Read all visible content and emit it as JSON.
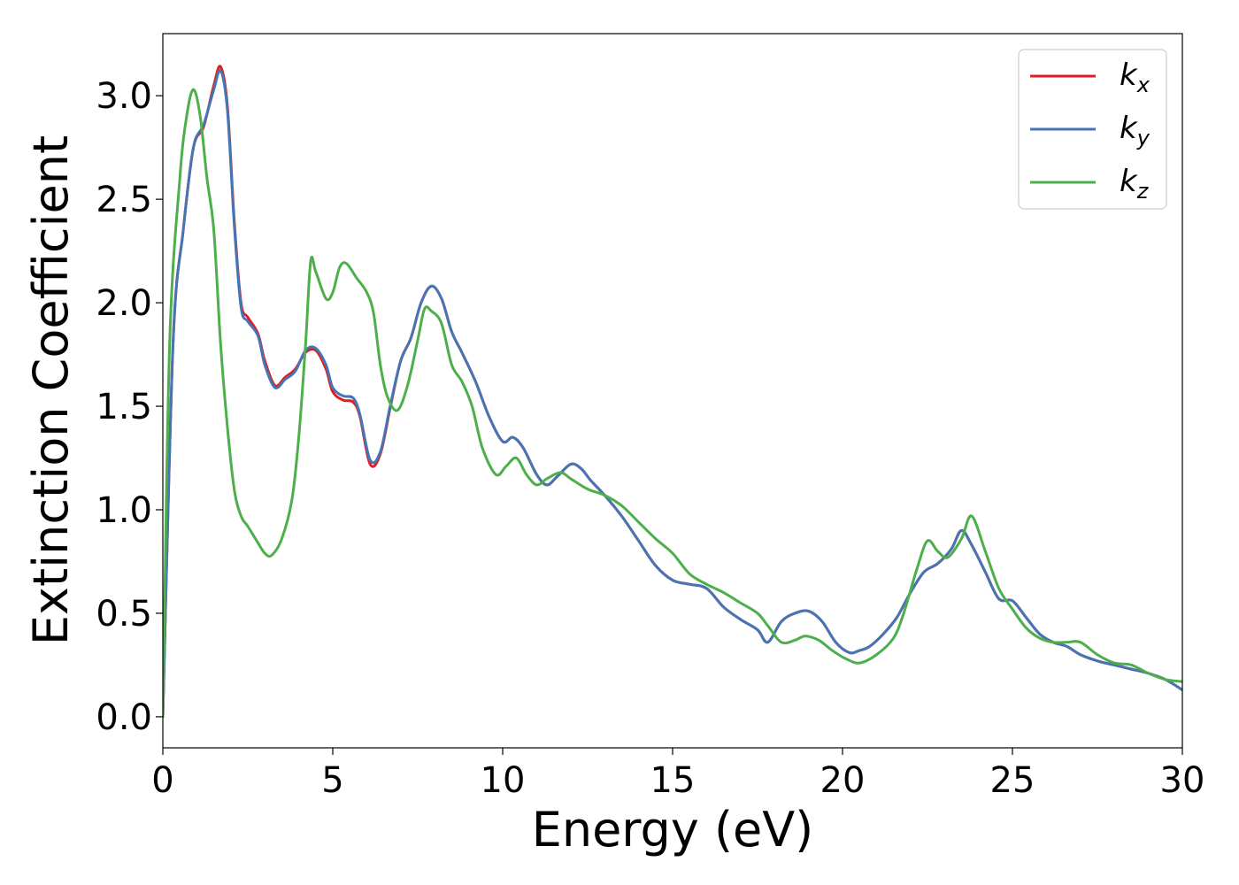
{
  "chart_data": {
    "type": "line",
    "xlabel": "Energy (eV)",
    "ylabel": "Extinction Coefficient",
    "xlim": [
      0,
      30
    ],
    "ylim": [
      -0.15,
      3.3
    ],
    "xticks": [
      0,
      5,
      10,
      15,
      20,
      25,
      30
    ],
    "xtick_labels": [
      "0",
      "5",
      "10",
      "15",
      "20",
      "25",
      "30"
    ],
    "yticks": [
      0.0,
      0.5,
      1.0,
      1.5,
      2.0,
      2.5,
      3.0
    ],
    "ytick_labels": [
      "0.0",
      "0.5",
      "1.0",
      "1.5",
      "2.0",
      "2.5",
      "3.0"
    ],
    "grid": false,
    "legend_position": "top-right",
    "series": [
      {
        "name": "kx",
        "label_base": "k",
        "label_sub": "x",
        "color": "#e41a1c",
        "x": [
          0,
          0.3,
          0.6,
          0.9,
          1.2,
          1.5,
          1.7,
          1.9,
          2.1,
          2.3,
          2.5,
          2.8,
          3.0,
          3.3,
          3.6,
          3.9,
          4.2,
          4.5,
          4.8,
          5.0,
          5.3,
          5.6,
          5.8,
          6.1,
          6.4,
          6.7,
          7.0,
          7.3,
          7.6,
          7.9,
          8.2,
          8.5,
          8.8,
          9.2,
          9.6,
          10.0,
          10.3,
          10.6,
          11.0,
          11.3,
          11.6,
          12.0,
          12.3,
          12.6,
          13.0,
          13.5,
          14.0,
          14.5,
          15.0,
          15.5,
          16.0,
          16.5,
          17.0,
          17.5,
          17.8,
          18.2,
          18.6,
          19.0,
          19.4,
          19.8,
          20.2,
          20.5,
          20.8,
          21.2,
          21.6,
          22.0,
          22.4,
          22.8,
          23.2,
          23.5,
          23.8,
          24.2,
          24.6,
          25.0,
          25.4,
          25.8,
          26.2,
          26.6,
          27.0,
          27.5,
          28.0,
          28.5,
          29.0,
          29.5,
          30.0
        ],
        "y": [
          0.0,
          1.8,
          2.35,
          2.75,
          2.85,
          3.05,
          3.14,
          2.95,
          2.4,
          2.0,
          1.93,
          1.85,
          1.72,
          1.6,
          1.64,
          1.68,
          1.76,
          1.77,
          1.68,
          1.57,
          1.53,
          1.52,
          1.45,
          1.22,
          1.27,
          1.5,
          1.72,
          1.83,
          2.0,
          2.08,
          2.02,
          1.86,
          1.76,
          1.62,
          1.45,
          1.33,
          1.35,
          1.3,
          1.17,
          1.12,
          1.16,
          1.22,
          1.2,
          1.14,
          1.07,
          0.97,
          0.85,
          0.73,
          0.66,
          0.64,
          0.62,
          0.53,
          0.47,
          0.42,
          0.36,
          0.46,
          0.5,
          0.51,
          0.46,
          0.36,
          0.31,
          0.32,
          0.34,
          0.4,
          0.48,
          0.6,
          0.7,
          0.74,
          0.81,
          0.9,
          0.83,
          0.7,
          0.57,
          0.56,
          0.48,
          0.4,
          0.36,
          0.34,
          0.3,
          0.27,
          0.25,
          0.23,
          0.21,
          0.18,
          0.13
        ]
      },
      {
        "name": "ky",
        "label_base": "k",
        "label_sub": "y",
        "color": "#4575b4",
        "x": [
          0,
          0.3,
          0.6,
          0.9,
          1.2,
          1.5,
          1.7,
          1.9,
          2.1,
          2.3,
          2.5,
          2.8,
          3.0,
          3.3,
          3.6,
          3.9,
          4.2,
          4.5,
          4.8,
          5.0,
          5.3,
          5.6,
          5.8,
          6.1,
          6.4,
          6.7,
          7.0,
          7.3,
          7.6,
          7.9,
          8.2,
          8.5,
          8.8,
          9.2,
          9.6,
          10.0,
          10.3,
          10.6,
          11.0,
          11.3,
          11.6,
          12.0,
          12.3,
          12.6,
          13.0,
          13.5,
          14.0,
          14.5,
          15.0,
          15.5,
          16.0,
          16.5,
          17.0,
          17.5,
          17.8,
          18.2,
          18.6,
          19.0,
          19.4,
          19.8,
          20.2,
          20.5,
          20.8,
          21.2,
          21.6,
          22.0,
          22.4,
          22.8,
          23.2,
          23.5,
          23.8,
          24.2,
          24.6,
          25.0,
          25.4,
          25.8,
          26.2,
          26.6,
          27.0,
          27.5,
          28.0,
          28.5,
          29.0,
          29.5,
          30.0
        ],
        "y": [
          0.0,
          1.8,
          2.35,
          2.75,
          2.86,
          3.03,
          3.12,
          2.93,
          2.38,
          1.98,
          1.91,
          1.84,
          1.7,
          1.59,
          1.63,
          1.67,
          1.77,
          1.78,
          1.7,
          1.59,
          1.55,
          1.54,
          1.46,
          1.24,
          1.28,
          1.51,
          1.72,
          1.83,
          2.0,
          2.08,
          2.02,
          1.86,
          1.76,
          1.62,
          1.45,
          1.33,
          1.35,
          1.3,
          1.17,
          1.12,
          1.16,
          1.22,
          1.2,
          1.14,
          1.07,
          0.97,
          0.85,
          0.73,
          0.66,
          0.64,
          0.62,
          0.53,
          0.47,
          0.42,
          0.36,
          0.46,
          0.5,
          0.51,
          0.46,
          0.36,
          0.31,
          0.32,
          0.34,
          0.4,
          0.48,
          0.6,
          0.7,
          0.74,
          0.81,
          0.9,
          0.83,
          0.7,
          0.57,
          0.56,
          0.48,
          0.4,
          0.36,
          0.34,
          0.3,
          0.27,
          0.25,
          0.23,
          0.21,
          0.18,
          0.13
        ]
      },
      {
        "name": "kz",
        "label_base": "k",
        "label_sub": "z",
        "color": "#4daf4a",
        "x": [
          0,
          0.2,
          0.5,
          0.7,
          0.9,
          1.1,
          1.3,
          1.5,
          1.7,
          1.9,
          2.1,
          2.3,
          2.5,
          2.8,
          3.0,
          3.2,
          3.5,
          3.8,
          4.0,
          4.2,
          4.35,
          4.5,
          4.8,
          5.0,
          5.2,
          5.4,
          5.7,
          6.0,
          6.2,
          6.4,
          6.6,
          6.9,
          7.2,
          7.5,
          7.7,
          7.9,
          8.2,
          8.5,
          8.8,
          9.1,
          9.4,
          9.8,
          10.1,
          10.4,
          10.7,
          11.0,
          11.3,
          11.7,
          12.0,
          12.5,
          13.0,
          13.5,
          14.0,
          14.5,
          15.0,
          15.5,
          16.0,
          16.5,
          17.0,
          17.5,
          17.8,
          18.2,
          18.6,
          18.9,
          19.3,
          19.7,
          20.1,
          20.5,
          21.0,
          21.5,
          21.8,
          22.2,
          22.5,
          22.8,
          23.1,
          23.5,
          23.8,
          24.2,
          24.6,
          25.0,
          25.4,
          25.8,
          26.2,
          26.6,
          27.0,
          27.5,
          28.0,
          28.5,
          29.0,
          29.5,
          30.0
        ],
        "y": [
          0.0,
          1.8,
          2.6,
          2.9,
          3.03,
          2.9,
          2.6,
          2.35,
          1.8,
          1.4,
          1.1,
          0.97,
          0.92,
          0.84,
          0.79,
          0.78,
          0.86,
          1.05,
          1.35,
          1.8,
          2.2,
          2.15,
          2.02,
          2.05,
          2.17,
          2.19,
          2.12,
          2.05,
          1.95,
          1.7,
          1.55,
          1.48,
          1.6,
          1.82,
          1.97,
          1.96,
          1.9,
          1.7,
          1.62,
          1.5,
          1.3,
          1.17,
          1.21,
          1.25,
          1.17,
          1.12,
          1.15,
          1.18,
          1.15,
          1.1,
          1.07,
          1.02,
          0.94,
          0.86,
          0.79,
          0.69,
          0.64,
          0.6,
          0.55,
          0.5,
          0.44,
          0.36,
          0.37,
          0.39,
          0.37,
          0.32,
          0.28,
          0.26,
          0.3,
          0.38,
          0.5,
          0.72,
          0.85,
          0.8,
          0.77,
          0.86,
          0.97,
          0.8,
          0.62,
          0.52,
          0.43,
          0.38,
          0.36,
          0.36,
          0.36,
          0.3,
          0.26,
          0.25,
          0.21,
          0.18,
          0.17
        ]
      }
    ]
  }
}
